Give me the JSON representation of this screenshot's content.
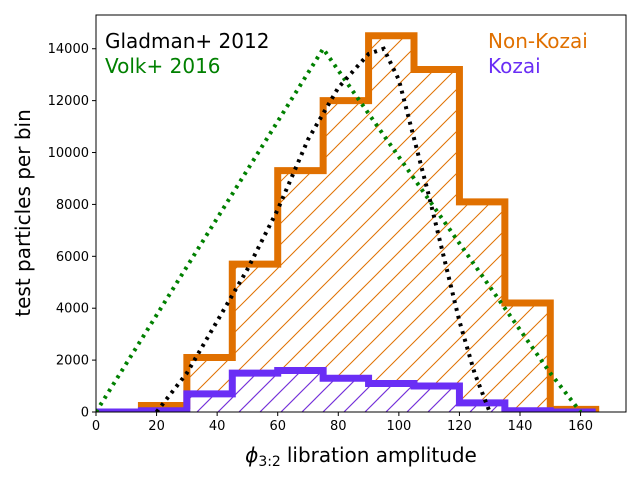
{
  "chart_data": {
    "type": "histogram",
    "xlabel_symbol": "ϕ",
    "xlabel_subscript": "3:2",
    "xlabel_text": "libration amplitude",
    "ylabel": "test particles per bin",
    "xlim": [
      0,
      175
    ],
    "ylim": [
      0,
      15300
    ],
    "xticks": [
      0,
      20,
      40,
      60,
      80,
      100,
      120,
      140,
      160
    ],
    "yticks": [
      0,
      2000,
      4000,
      6000,
      8000,
      10000,
      12000,
      14000
    ],
    "bin_edges": [
      0,
      15,
      30,
      45,
      60,
      75,
      90,
      105,
      120,
      135,
      150,
      165
    ],
    "non_kozai": {
      "name": "Non-Kozai",
      "color": "#e07000",
      "values": [
        0,
        250,
        2100,
        5700,
        9300,
        12000,
        14500,
        13200,
        8100,
        4200,
        100
      ]
    },
    "kozai": {
      "name": "Kozai",
      "color": "#6a2ef5",
      "values": [
        0,
        50,
        700,
        1500,
        1600,
        1300,
        1100,
        1000,
        350,
        50,
        0
      ]
    },
    "gladman_2012": {
      "name": "Gladman+ 2012",
      "color": "#000000",
      "x": [
        20,
        30,
        40,
        50,
        60,
        70,
        80,
        90,
        95,
        100,
        110,
        120,
        125,
        130
      ],
      "y": [
        0,
        1500,
        3500,
        5500,
        7800,
        10500,
        12500,
        13800,
        14000,
        12800,
        8300,
        3500,
        1500,
        0
      ]
    },
    "volk_2016": {
      "name": "Volk+ 2016",
      "color": "#008000",
      "x": [
        0,
        75,
        150,
        160
      ],
      "y": [
        0,
        14000,
        1500,
        0
      ]
    }
  }
}
